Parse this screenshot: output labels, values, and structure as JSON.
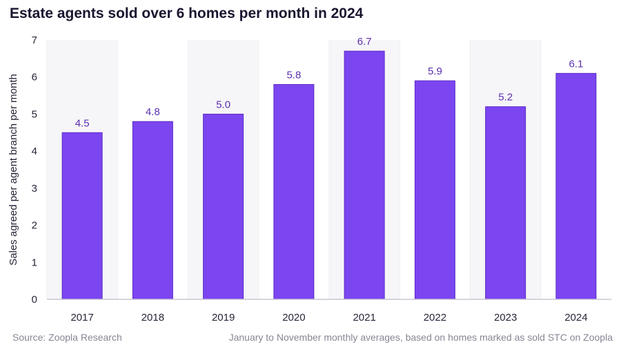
{
  "chart_data": {
    "type": "bar",
    "title": "Estate agents sold over 6 homes per month in 2024",
    "xlabel": "",
    "ylabel": "Sales agreed per agent branch per month",
    "categories": [
      "2017",
      "2018",
      "2019",
      "2020",
      "2021",
      "2022",
      "2023",
      "2024"
    ],
    "values": [
      4.5,
      4.8,
      5.0,
      5.8,
      6.7,
      5.9,
      5.2,
      6.1
    ],
    "value_labels": [
      "4.5",
      "4.8",
      "5.0",
      "5.8",
      "6.7",
      "5.9",
      "5.2",
      "6.1"
    ],
    "ylim": [
      0,
      7
    ],
    "yticks": [
      0,
      1,
      2,
      3,
      4,
      5,
      6,
      7
    ],
    "bar_color": "#7b45f0",
    "label_color": "#5a2fb0"
  },
  "footer": {
    "source": "Source: Zoopla Research",
    "note": "January to November monthly averages, based on homes marked as sold STC on Zoopla"
  }
}
